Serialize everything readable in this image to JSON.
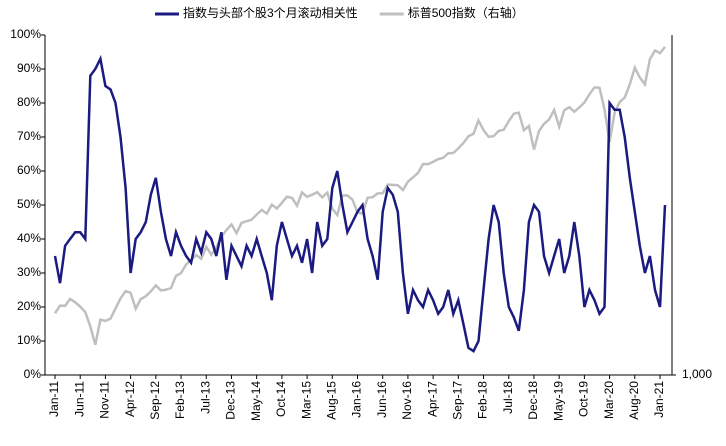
{
  "chart_data": {
    "type": "line",
    "categories": [
      "Jan-11",
      null,
      null,
      null,
      null,
      "Jun-11",
      null,
      null,
      null,
      null,
      "Nov-11",
      null,
      null,
      null,
      null,
      "Apr-12",
      null,
      null,
      null,
      null,
      "Sep-12",
      null,
      null,
      null,
      null,
      "Feb-13",
      null,
      null,
      null,
      null,
      "Jul-13",
      null,
      null,
      null,
      null,
      "Dec-13",
      null,
      null,
      null,
      null,
      "May-14",
      null,
      null,
      null,
      null,
      "Oct-14",
      null,
      null,
      null,
      null,
      "Mar-15",
      null,
      null,
      null,
      null,
      "Aug-15",
      null,
      null,
      null,
      null,
      "Jan-16",
      null,
      null,
      null,
      null,
      "Jun-16",
      null,
      null,
      null,
      null,
      "Nov-16",
      null,
      null,
      null,
      null,
      "Apr-17",
      null,
      null,
      null,
      null,
      "Sep-17",
      null,
      null,
      null,
      null,
      "Feb-18",
      null,
      null,
      null,
      null,
      "Jul-18",
      null,
      null,
      null,
      null,
      "Dec-18",
      null,
      null,
      null,
      null,
      "May-19",
      null,
      null,
      null,
      null,
      "Oct-19",
      null,
      null,
      null,
      null,
      "Mar-20",
      null,
      null,
      null,
      null,
      "Aug-20",
      null,
      null,
      null,
      null,
      "Jan-21",
      null
    ],
    "series": [
      {
        "name": "指数与头部个股3个月滚动相关性",
        "color": "#1a1a80",
        "axis": "y",
        "values": [
          35,
          27,
          38,
          40,
          42,
          42,
          40,
          88,
          90,
          93,
          85,
          84,
          80,
          70,
          55,
          30,
          40,
          42,
          45,
          53,
          58,
          48,
          40,
          35,
          42,
          38,
          35,
          33,
          40,
          36,
          42,
          40,
          35,
          42,
          28,
          38,
          35,
          32,
          38,
          35,
          40,
          35,
          30,
          22,
          38,
          45,
          40,
          35,
          38,
          33,
          40,
          30,
          45,
          38,
          40,
          55,
          60,
          50,
          42,
          45,
          48,
          50,
          40,
          35,
          28,
          48,
          55,
          53,
          48,
          30,
          18,
          25,
          22,
          20,
          25,
          22,
          18,
          20,
          25,
          18,
          22,
          15,
          8,
          7,
          10,
          25,
          40,
          50,
          45,
          30,
          20,
          17,
          13,
          25,
          45,
          50,
          48,
          35,
          30,
          35,
          40,
          30,
          35,
          45,
          35,
          20,
          25,
          22,
          18,
          20,
          80,
          78,
          78,
          70,
          58,
          48,
          38,
          30,
          35,
          25,
          20,
          50
        ]
      },
      {
        "name": "标普500指数（右轴）",
        "color": "#bfbfbf",
        "axis": "y2",
        "values": [
          1286,
          1327,
          1326,
          1364,
          1345,
          1321,
          1292,
          1219,
          1131,
          1253,
          1247,
          1258,
          1312,
          1366,
          1408,
          1398,
          1310,
          1362,
          1379,
          1406,
          1441,
          1412,
          1416,
          1426,
          1498,
          1515,
          1569,
          1598,
          1631,
          1606,
          1686,
          1633,
          1682,
          1757,
          1806,
          1848,
          1783,
          1859,
          1872,
          1884,
          1924,
          1960,
          1931,
          2003,
          1972,
          2018,
          2068,
          2059,
          1995,
          2105,
          2068,
          2086,
          2107,
          2063,
          2104,
          1972,
          1920,
          2079,
          2080,
          2044,
          1940,
          1932,
          2060,
          2065,
          2097,
          2099,
          2174,
          2171,
          2168,
          2126,
          2199,
          2239,
          2279,
          2364,
          2363,
          2384,
          2412,
          2423,
          2470,
          2472,
          2519,
          2575,
          2648,
          2674,
          2824,
          2714,
          2641,
          2648,
          2705,
          2718,
          2816,
          2902,
          2914,
          2712,
          2760,
          2507,
          2704,
          2784,
          2834,
          2946,
          2752,
          2942,
          2980,
          2926,
          2977,
          3038,
          3141,
          3231,
          3226,
          2954,
          2585,
          2912,
          3044,
          3100,
          3271,
          3500,
          3363,
          3270,
          3622,
          3756,
          3714,
          3811
        ]
      }
    ],
    "ylim": [
      0,
      100
    ],
    "yticks": [
      {
        "value": 0,
        "label": "0%"
      },
      {
        "value": 10,
        "label": "10%"
      },
      {
        "value": 20,
        "label": "20%"
      },
      {
        "value": 30,
        "label": "30%"
      },
      {
        "value": 40,
        "label": "40%"
      },
      {
        "value": 50,
        "label": "50%"
      },
      {
        "value": 60,
        "label": "60%"
      },
      {
        "value": 70,
        "label": "70%"
      },
      {
        "value": 80,
        "label": "80%"
      },
      {
        "value": 90,
        "label": "90%"
      },
      {
        "value": 100,
        "label": "100%"
      }
    ],
    "y2lim": [
      1000,
      4000
    ],
    "y2log": true,
    "y2ticks": [
      {
        "value": 1000,
        "label": "1,000"
      }
    ],
    "legend": "top"
  }
}
